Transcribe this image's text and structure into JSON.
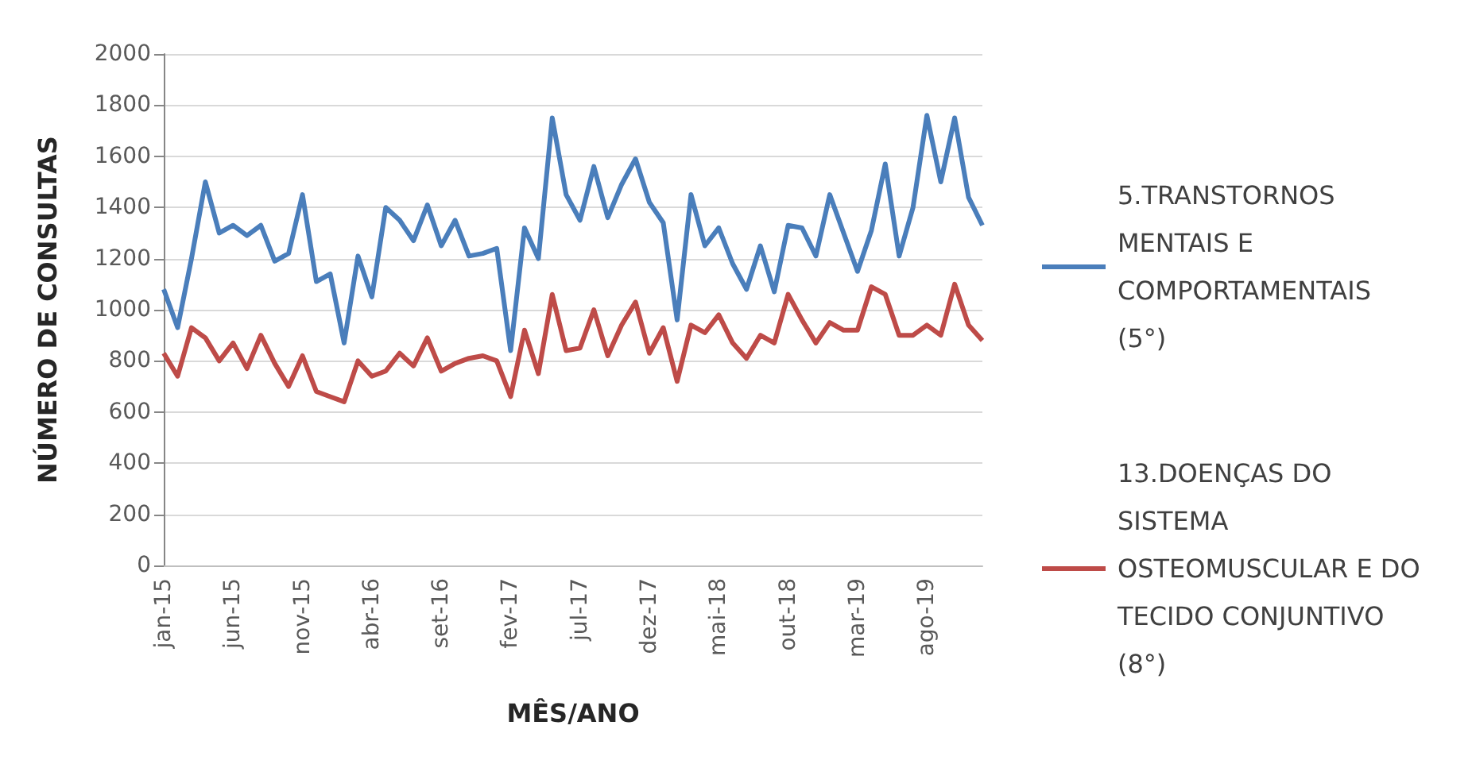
{
  "chart_data": {
    "type": "line",
    "xlabel": "MÊS/ANO",
    "ylabel": "NÚMERO DE CONSULTAS",
    "categories": [
      "jan-15",
      null,
      null,
      null,
      null,
      "jun-15",
      null,
      null,
      null,
      null,
      "nov-15",
      null,
      null,
      null,
      null,
      "abr-16",
      null,
      null,
      null,
      null,
      "set-16",
      null,
      null,
      null,
      null,
      "fev-17",
      null,
      null,
      null,
      null,
      "jul-17",
      null,
      null,
      null,
      null,
      "dez-17",
      null,
      null,
      null,
      null,
      "mai-18",
      null,
      null,
      null,
      null,
      "out-18",
      null,
      null,
      null,
      null,
      "mar-19",
      null,
      null,
      null,
      null,
      "ago-19",
      null,
      null,
      null,
      null
    ],
    "series": [
      {
        "name": "5.TRANSTORNOS MENTAIS E COMPORTAMENTAIS (5°)",
        "color": "#4a7ebb",
        "values": [
          1080,
          930,
          1200,
          1500,
          1300,
          1330,
          1290,
          1330,
          1190,
          1220,
          1450,
          1110,
          1140,
          870,
          1210,
          1050,
          1400,
          1350,
          1270,
          1410,
          1250,
          1350,
          1210,
          1220,
          1240,
          840,
          1320,
          1200,
          1750,
          1450,
          1350,
          1560,
          1360,
          1490,
          1590,
          1420,
          1340,
          960,
          1450,
          1250,
          1320,
          1180,
          1080,
          1250,
          1070,
          1330,
          1320,
          1210,
          1450,
          1300,
          1150,
          1310,
          1570,
          1210,
          1400,
          1760,
          1500,
          1750,
          1440,
          1330
        ]
      },
      {
        "name": "13.DOENÇAS DO SISTEMA OSTEOMUSCULAR E DO TECIDO CONJUNTIVO (8°)",
        "color": "#be4b48",
        "values": [
          830,
          740,
          930,
          890,
          800,
          870,
          770,
          900,
          790,
          700,
          820,
          680,
          660,
          640,
          800,
          740,
          760,
          830,
          780,
          890,
          760,
          790,
          810,
          820,
          800,
          660,
          920,
          750,
          1060,
          840,
          850,
          1000,
          820,
          940,
          1030,
          830,
          930,
          720,
          940,
          910,
          980,
          870,
          810,
          900,
          870,
          1060,
          960,
          870,
          950,
          920,
          920,
          1090,
          1060,
          900,
          900,
          940,
          900,
          1100,
          940,
          880
        ]
      }
    ],
    "ylim": [
      0,
      2000
    ],
    "yticks": [
      0,
      200,
      400,
      600,
      800,
      1000,
      1200,
      1400,
      1600,
      1800,
      2000
    ],
    "grid": "y",
    "legend": "right",
    "marker": "none",
    "line_style": "solid"
  }
}
